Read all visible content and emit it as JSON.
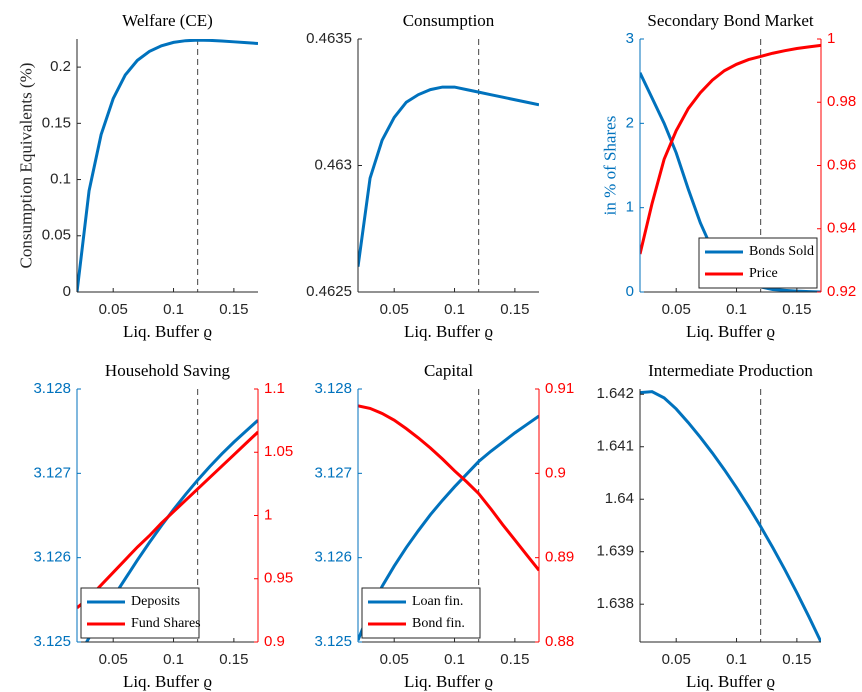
{
  "chart_data": [
    {
      "type": "line",
      "title": "Welfare (CE)",
      "xlabel": "Liq. Buffer ϱ",
      "ylabel": "Consumption Equivalents (%)",
      "x": [
        0.02,
        0.03,
        0.04,
        0.05,
        0.06,
        0.07,
        0.08,
        0.09,
        0.1,
        0.11,
        0.12,
        0.13,
        0.14,
        0.15,
        0.16,
        0.17
      ],
      "series": [
        {
          "color": "#0072bd",
          "values": [
            0,
            0.09,
            0.14,
            0.172,
            0.193,
            0.206,
            0.214,
            0.219,
            0.222,
            0.2235,
            0.224,
            0.2238,
            0.2232,
            0.2225,
            0.2218,
            0.221
          ]
        }
      ],
      "xlim": [
        0.02,
        0.17
      ],
      "xticks": [
        0.05,
        0.1,
        0.15
      ],
      "ylim": [
        0,
        0.225
      ],
      "yticks": [
        0,
        0.05,
        0.1,
        0.15,
        0.2
      ],
      "ycolor": "#262626",
      "vline": 0.12
    },
    {
      "type": "line",
      "title": "Consumption",
      "xlabel": "Liq. Buffer ϱ",
      "x": [
        0.02,
        0.03,
        0.04,
        0.05,
        0.06,
        0.07,
        0.08,
        0.09,
        0.1,
        0.11,
        0.12,
        0.13,
        0.14,
        0.15,
        0.16,
        0.17
      ],
      "series": [
        {
          "color": "#0072bd",
          "values": [
            0.4626,
            0.46295,
            0.4631,
            0.46319,
            0.46325,
            0.46328,
            0.4633,
            0.46331,
            0.46331,
            0.4633,
            0.46329,
            0.46328,
            0.46327,
            0.46326,
            0.46325,
            0.46324
          ]
        }
      ],
      "xlim": [
        0.02,
        0.17
      ],
      "xticks": [
        0.05,
        0.1,
        0.15
      ],
      "ylim": [
        0.4625,
        0.4635
      ],
      "yticks": [
        0.4625,
        0.463,
        0.4635
      ],
      "ycolor": "#262626",
      "vline": 0.12
    },
    {
      "type": "line",
      "title": "Secondary Bond Market",
      "xlabel": "Liq. Buffer ϱ",
      "ylabel": "in % of Shares",
      "x": [
        0.02,
        0.03,
        0.04,
        0.05,
        0.06,
        0.07,
        0.08,
        0.09,
        0.1,
        0.11,
        0.12,
        0.13,
        0.14,
        0.15,
        0.16,
        0.17
      ],
      "series": [
        {
          "name": "Bonds Sold",
          "color": "#0072bd",
          "values": [
            2.6,
            2.3,
            2.0,
            1.65,
            1.22,
            0.82,
            0.5,
            0.3,
            0.18,
            0.1,
            0.06,
            0.03,
            0.02,
            0.01,
            0.005,
            0
          ]
        },
        {
          "name": "Price",
          "color": "#ff0000",
          "axis": "y2",
          "values": [
            0.932,
            0.948,
            0.962,
            0.971,
            0.978,
            0.983,
            0.987,
            0.99,
            0.992,
            0.9935,
            0.9945,
            0.9955,
            0.9963,
            0.997,
            0.9975,
            0.998
          ]
        }
      ],
      "xlim": [
        0.02,
        0.17
      ],
      "xticks": [
        0.05,
        0.1,
        0.15
      ],
      "ylim": [
        0,
        3
      ],
      "yticks": [
        0,
        1,
        2,
        3
      ],
      "y2lim": [
        0.92,
        1
      ],
      "y2ticks": [
        0.92,
        0.94,
        0.96,
        0.98,
        1
      ],
      "ycolor": "#0072bd",
      "y2color": "#ff0000",
      "legend": "lower right",
      "vline": 0.12
    },
    {
      "type": "line",
      "title": "Household Saving",
      "xlabel": "Liq. Buffer ϱ",
      "x": [
        0.02,
        0.03,
        0.04,
        0.05,
        0.06,
        0.07,
        0.08,
        0.09,
        0.1,
        0.11,
        0.12,
        0.13,
        0.14,
        0.15,
        0.16,
        0.17
      ],
      "series": [
        {
          "name": "Deposits",
          "color": "#0072bd",
          "values": [
            3.1248,
            3.12505,
            3.1253,
            3.12553,
            3.12575,
            3.12597,
            3.12618,
            3.12638,
            3.12657,
            3.12675,
            3.12692,
            3.12708,
            3.12723,
            3.12737,
            3.1275,
            3.12763
          ]
        },
        {
          "name": "Fund Shares",
          "color": "#ff0000",
          "axis": "y2",
          "values": [
            0.927,
            0.935,
            0.945,
            0.955,
            0.965,
            0.975,
            0.984,
            0.994,
            1.003,
            1.012,
            1.021,
            1.03,
            1.039,
            1.048,
            1.057,
            1.066
          ]
        }
      ],
      "xlim": [
        0.02,
        0.17
      ],
      "xticks": [
        0.05,
        0.1,
        0.15
      ],
      "ylim": [
        3.125,
        3.128
      ],
      "yticks": [
        3.125,
        3.126,
        3.127,
        3.128
      ],
      "y2lim": [
        0.9,
        1.1
      ],
      "y2ticks": [
        0.9,
        0.95,
        1,
        1.05,
        1.1
      ],
      "ycolor": "#0072bd",
      "y2color": "#ff0000",
      "legend": "lower left",
      "vline": 0.12
    },
    {
      "type": "line",
      "title": "Capital",
      "xlabel": "Liq. Buffer ϱ",
      "x": [
        0.02,
        0.03,
        0.04,
        0.05,
        0.06,
        0.07,
        0.08,
        0.09,
        0.1,
        0.11,
        0.12,
        0.13,
        0.14,
        0.15,
        0.16,
        0.17
      ],
      "series": [
        {
          "name": "Loan fin.",
          "color": "#0072bd",
          "values": [
            3.12502,
            3.12538,
            3.12566,
            3.1259,
            3.12612,
            3.12632,
            3.12651,
            3.12668,
            3.12684,
            3.12699,
            3.12714,
            3.12726,
            3.12737,
            3.12748,
            3.12758,
            3.12768
          ]
        },
        {
          "name": "Bond fin.",
          "color": "#ff0000",
          "axis": "y2",
          "values": [
            0.908,
            0.9077,
            0.9071,
            0.9063,
            0.9053,
            0.9042,
            0.903,
            0.9017,
            0.9003,
            0.899,
            0.8976,
            0.8958,
            0.8939,
            0.8921,
            0.8903,
            0.8885
          ]
        }
      ],
      "xlim": [
        0.02,
        0.17
      ],
      "xticks": [
        0.05,
        0.1,
        0.15
      ],
      "ylim": [
        3.125,
        3.128
      ],
      "yticks": [
        3.125,
        3.126,
        3.127,
        3.128
      ],
      "y2lim": [
        0.88,
        0.91
      ],
      "y2ticks": [
        0.88,
        0.89,
        0.9,
        0.91
      ],
      "ycolor": "#0072bd",
      "y2color": "#ff0000",
      "legend": "lower left",
      "vline": 0.12
    },
    {
      "type": "line",
      "title": "Intermediate Production",
      "xlabel": "Liq. Buffer ϱ",
      "x": [
        0.02,
        0.03,
        0.04,
        0.05,
        0.06,
        0.07,
        0.08,
        0.09,
        0.1,
        0.11,
        0.12,
        0.13,
        0.14,
        0.15,
        0.16,
        0.17
      ],
      "series": [
        {
          "color": "#0072bd",
          "values": [
            1.64203,
            1.64205,
            1.64193,
            1.64172,
            1.64146,
            1.64118,
            1.64088,
            1.64056,
            1.64022,
            1.63986,
            1.63948,
            1.63908,
            1.63866,
            1.63822,
            1.63776,
            1.63728
          ]
        }
      ],
      "xlim": [
        0.02,
        0.17
      ],
      "xticks": [
        0.05,
        0.1,
        0.15
      ],
      "ylim": [
        1.63728,
        1.6421
      ],
      "yticks": [
        1.638,
        1.639,
        1.64,
        1.641,
        1.642
      ],
      "ycolor": "#262626",
      "vline": 0.12
    }
  ]
}
